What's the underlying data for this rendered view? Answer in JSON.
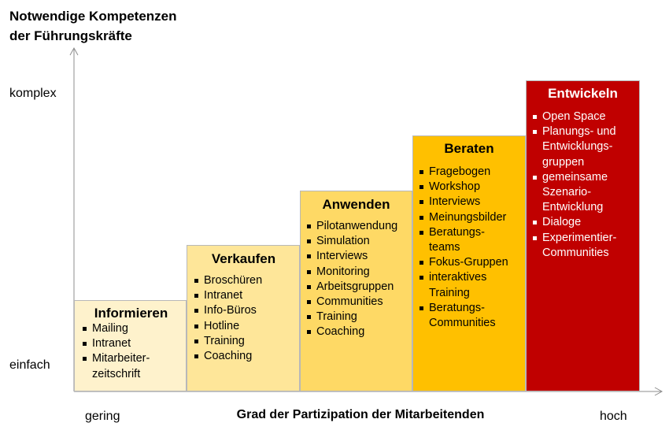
{
  "title_line1": "Notwendige Kompetenzen",
  "title_line2": "der Führungskräfte",
  "y_labels": {
    "top": "komplex",
    "bottom": "einfach"
  },
  "x_labels": {
    "left": "gering",
    "title": "Grad der Partizipation der Mitarbeitenden",
    "right": "hoch"
  },
  "steps": [
    {
      "title": "Informieren",
      "color": "#FEF2CC",
      "text_color": "#000000",
      "items": [
        "Mailing",
        "Intranet",
        "Mitarbeiter-\nzeitschrift"
      ]
    },
    {
      "title": "Verkaufen",
      "color": "#FEE699",
      "text_color": "#000000",
      "items": [
        "Broschüren",
        "Intranet",
        "Info-Büros",
        "Hotline",
        "Training",
        "Coaching"
      ]
    },
    {
      "title": "Anwenden",
      "color": "#FED965",
      "text_color": "#000000",
      "items": [
        "Pilotanwendung",
        "Simulation",
        "Interviews",
        "Monitoring",
        "Arbeitsgruppen",
        "Communities",
        "Training",
        "Coaching"
      ]
    },
    {
      "title": "Beraten",
      "color": "#FFC000",
      "text_color": "#000000",
      "items": [
        "Fragebogen",
        "Workshop",
        "Interviews",
        "Meinungsbilder",
        "Beratungs-\nteams",
        "Fokus-Gruppen",
        "interaktives\nTraining",
        "Beratungs-\nCommunities"
      ]
    },
    {
      "title": "Entwickeln",
      "color": "#C00000",
      "text_color": "#FFFFFF",
      "items": [
        "Open Space",
        "Planungs-  und\nEntwicklungs-\ngruppen",
        "gemeinsame\nSzenario-\nEntwicklung",
        "Dialoge",
        "Experimentier-\nCommunities"
      ]
    }
  ]
}
